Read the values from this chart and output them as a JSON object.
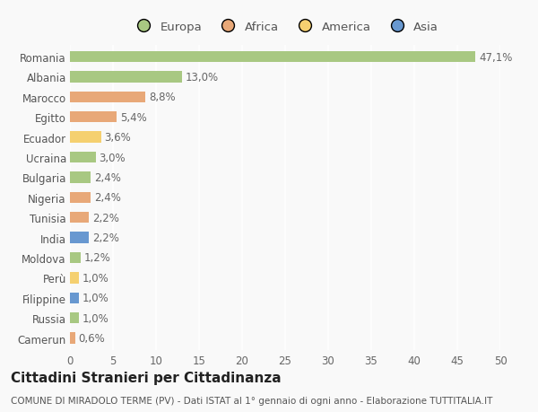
{
  "countries": [
    "Romania",
    "Albania",
    "Marocco",
    "Egitto",
    "Ecuador",
    "Ucraina",
    "Bulgaria",
    "Nigeria",
    "Tunisia",
    "India",
    "Moldova",
    "Perù",
    "Filippine",
    "Russia",
    "Camerun"
  ],
  "values": [
    47.1,
    13.0,
    8.8,
    5.4,
    3.6,
    3.0,
    2.4,
    2.4,
    2.2,
    2.2,
    1.2,
    1.0,
    1.0,
    1.0,
    0.6
  ],
  "labels": [
    "47,1%",
    "13,0%",
    "8,8%",
    "5,4%",
    "3,6%",
    "3,0%",
    "2,4%",
    "2,4%",
    "2,2%",
    "2,2%",
    "1,2%",
    "1,0%",
    "1,0%",
    "1,0%",
    "0,6%"
  ],
  "continents": [
    "Europa",
    "Europa",
    "Africa",
    "Africa",
    "America",
    "Europa",
    "Europa",
    "Africa",
    "Africa",
    "Asia",
    "Europa",
    "America",
    "Asia",
    "Europa",
    "Africa"
  ],
  "continent_colors": {
    "Europa": "#a8c882",
    "Africa": "#e8a878",
    "America": "#f5d070",
    "Asia": "#6898d0"
  },
  "legend_entries": [
    "Europa",
    "Africa",
    "America",
    "Asia"
  ],
  "legend_colors": [
    "#a8c882",
    "#e8a878",
    "#f5d070",
    "#6898d0"
  ],
  "xlim": [
    0,
    50
  ],
  "xticks": [
    0,
    5,
    10,
    15,
    20,
    25,
    30,
    35,
    40,
    45,
    50
  ],
  "title": "Cittadini Stranieri per Cittadinanza",
  "subtitle": "COMUNE DI MIRADOLO TERME (PV) - Dati ISTAT al 1° gennaio di ogni anno - Elaborazione TUTTITALIA.IT",
  "background_color": "#f9f9f9",
  "bar_height": 0.55,
  "label_fontsize": 8.5,
  "tick_fontsize": 8.5,
  "title_fontsize": 11,
  "subtitle_fontsize": 7.5,
  "legend_fontsize": 9.5
}
